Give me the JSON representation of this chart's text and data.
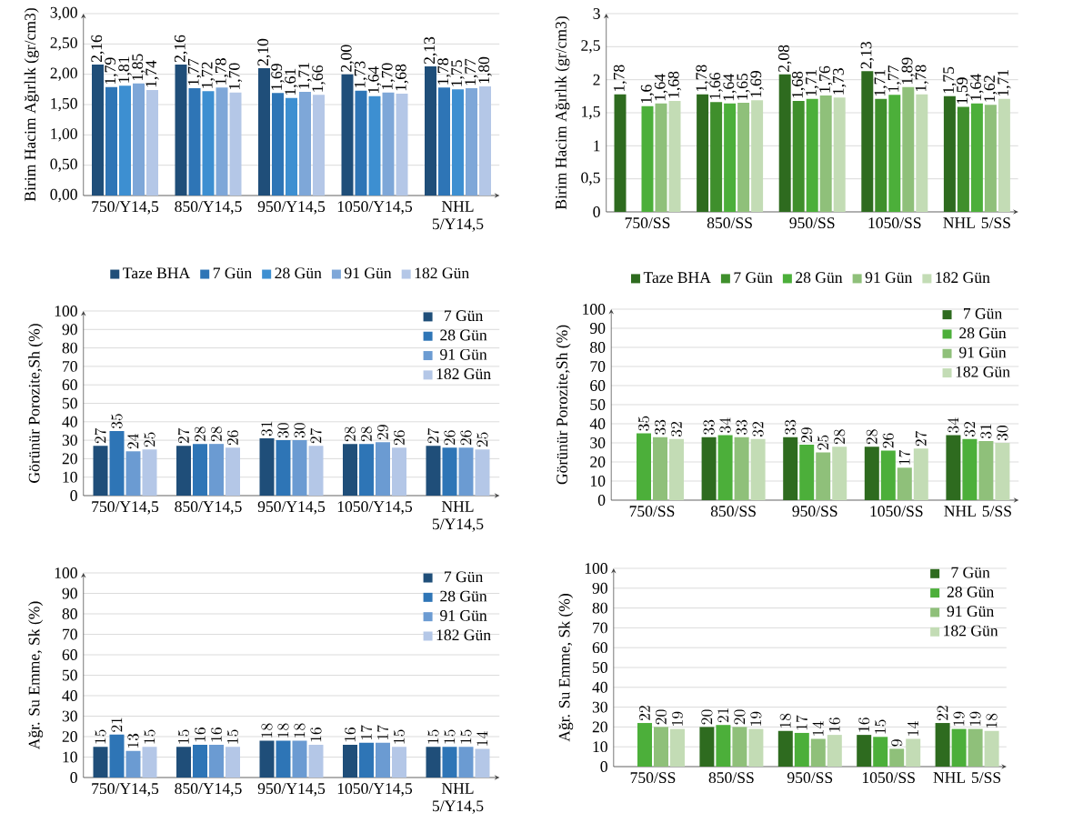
{
  "chart_data": [
    {
      "type": "bar",
      "ylabel": "Birim Hacim Ağırlık (gr/cm3)",
      "categories": [
        "750/Y14,5",
        "850/Y14,5",
        "950/Y14,5",
        "1050/Y14,5",
        "NHL 5/Y14,5"
      ],
      "ylim": [
        0,
        3
      ],
      "yticks": [
        {
          "value": 0,
          "label": "0,00"
        },
        {
          "value": 0.5,
          "label": "0,50"
        },
        {
          "value": 1,
          "label": "1,00"
        },
        {
          "value": 1.5,
          "label": "1,50"
        },
        {
          "value": 2,
          "label": "2,00"
        },
        {
          "value": 2.5,
          "label": "2,50"
        },
        {
          "value": 3,
          "label": "3,00"
        }
      ],
      "grid": "y",
      "legend": "bottom",
      "series": [
        {
          "name": "Taze BHA",
          "color": "#1f4e79",
          "values": [
            2.16,
            2.16,
            2.1,
            2.0,
            2.13
          ],
          "value_labels": [
            "2,16",
            "2,16",
            "2,10",
            "2,00",
            "2,13"
          ]
        },
        {
          "name": "7 Gün",
          "color": "#2e75b6",
          "values": [
            1.79,
            1.77,
            1.69,
            1.73,
            1.78
          ],
          "value_labels": [
            "1,79",
            "1,77",
            "1,69",
            "1,73",
            "1,78"
          ]
        },
        {
          "name": "28 Gün",
          "color": "#3d8fd1",
          "values": [
            1.81,
            1.72,
            1.61,
            1.64,
            1.75
          ],
          "value_labels": [
            "1,81",
            "1,72",
            "1,61",
            "1,64",
            "1,75"
          ]
        },
        {
          "name": "91 Gün",
          "color": "#7ea7d8",
          "values": [
            1.85,
            1.78,
            1.71,
            1.7,
            1.77
          ],
          "value_labels": [
            "1,85",
            "1,78",
            "1,71",
            "1,70",
            "1,77"
          ]
        },
        {
          "name": "182 Gün",
          "color": "#b4c7e7",
          "values": [
            1.74,
            1.7,
            1.66,
            1.68,
            1.8
          ],
          "value_labels": [
            "1,74",
            "1,70",
            "1,66",
            "1,68",
            "1,80"
          ]
        }
      ]
    },
    {
      "type": "bar",
      "ylabel": "Birim Hacim Ağırlık (gr/cm3)",
      "categories": [
        "750/SS",
        "850/SS",
        "950/SS",
        "1050/SS",
        "NHL 5/SS"
      ],
      "ylim": [
        0,
        3
      ],
      "yticks": [
        0,
        {
          "value": 0.5,
          "label": "0,5"
        },
        1,
        {
          "value": 1.5,
          "label": "1,5"
        },
        2,
        {
          "value": 2.5,
          "label": "2,5"
        },
        3
      ],
      "grid": "y",
      "legend": "bottom",
      "series": [
        {
          "name": "Taze BHA",
          "color": "#2e6b1f",
          "values": [
            1.78,
            1.78,
            2.08,
            2.13,
            1.75
          ],
          "value_labels": [
            "1,78",
            "1,78",
            "2,08",
            "2,13",
            "1,75"
          ]
        },
        {
          "name": "7 Gün",
          "color": "#3f8f2c",
          "values": [
            null,
            1.66,
            1.68,
            1.71,
            1.59
          ],
          "value_labels": [
            null,
            "1,66",
            "1,68",
            "1,71",
            "1,59"
          ]
        },
        {
          "name": "28 Gün",
          "color": "#4caf3a",
          "values": [
            1.6,
            1.64,
            1.71,
            1.77,
            1.64
          ],
          "value_labels": [
            "1,6",
            "1,64",
            "1,71",
            "1,77",
            "1,64"
          ]
        },
        {
          "name": "91 Gün",
          "color": "#8fc07a",
          "values": [
            1.64,
            1.65,
            1.76,
            1.89,
            1.62
          ],
          "value_labels": [
            "1,64",
            "1,65",
            "1,76",
            "1,89",
            "1,62"
          ]
        },
        {
          "name": "182 Gün",
          "color": "#c3dcb5",
          "values": [
            1.68,
            1.69,
            1.73,
            1.78,
            1.71
          ],
          "value_labels": [
            "1,68",
            "1,69",
            "1,73",
            "1,78",
            "1,71"
          ]
        }
      ]
    },
    {
      "type": "bar",
      "ylabel": "Görünür Porozite,Sh (%)",
      "categories": [
        "750/Y14,5",
        "850/Y14,5",
        "950/Y14,5",
        "1050/Y14,5",
        "NHL 5/Y14,5"
      ],
      "ylim": [
        0,
        100
      ],
      "yticks": [
        0,
        10,
        20,
        30,
        40,
        50,
        60,
        70,
        80,
        90,
        100
      ],
      "grid": "y",
      "legend": "top right",
      "data_labels": true,
      "series": [
        {
          "name": "7 Gün",
          "color": "#1f4e79",
          "values": [
            27,
            27,
            31,
            28,
            27
          ]
        },
        {
          "name": "28 Gün",
          "color": "#2e75b6",
          "values": [
            35,
            28,
            30,
            28,
            26
          ]
        },
        {
          "name": "91 Gün",
          "color": "#6b9bd2",
          "values": [
            24,
            28,
            30,
            29,
            26
          ]
        },
        {
          "name": "182 Gün",
          "color": "#b4c7e7",
          "values": [
            25,
            26,
            27,
            26,
            25
          ]
        }
      ]
    },
    {
      "type": "bar",
      "ylabel": "Görünür Porozite,Sh (%)",
      "categories": [
        "750/SS",
        "850/SS",
        "950/SS",
        "1050/SS",
        "NHL 5/SS"
      ],
      "ylim": [
        0,
        100
      ],
      "yticks": [
        0,
        10,
        20,
        30,
        40,
        50,
        60,
        70,
        80,
        90,
        100
      ],
      "grid": "y",
      "legend": "top right",
      "data_labels": true,
      "series": [
        {
          "name": "7 Gün",
          "color": "#2e6b1f",
          "values": [
            null,
            33,
            33,
            28,
            34
          ]
        },
        {
          "name": "28 Gün",
          "color": "#4caf3a",
          "values": [
            35,
            34,
            29,
            26,
            32
          ]
        },
        {
          "name": "91 Gün",
          "color": "#8fc07a",
          "values": [
            33,
            33,
            25,
            17,
            31
          ]
        },
        {
          "name": "182 Gün",
          "color": "#c3dcb5",
          "values": [
            32,
            32,
            28,
            27,
            30
          ]
        }
      ]
    },
    {
      "type": "bar",
      "ylabel": "Ağr. Su Emme, Sk (%)",
      "categories": [
        "750/Y14,5",
        "850/Y14,5",
        "950/Y14,5",
        "1050/Y14,5",
        "NHL 5/Y14,5"
      ],
      "ylim": [
        0,
        100
      ],
      "yticks": [
        0,
        10,
        20,
        30,
        40,
        50,
        60,
        70,
        80,
        90,
        100
      ],
      "grid": "y",
      "legend": "top right",
      "data_labels": true,
      "series": [
        {
          "name": "7 Gün",
          "color": "#1f4e79",
          "values": [
            15,
            15,
            18,
            16,
            15
          ]
        },
        {
          "name": "28 Gün",
          "color": "#2e75b6",
          "values": [
            21,
            16,
            18,
            17,
            15
          ]
        },
        {
          "name": "91 Gün",
          "color": "#6b9bd2",
          "values": [
            13,
            16,
            18,
            17,
            15
          ]
        },
        {
          "name": "182 Gün",
          "color": "#b4c7e7",
          "values": [
            15,
            15,
            16,
            15,
            14
          ]
        }
      ]
    },
    {
      "type": "bar",
      "ylabel": "Ağr. Su Emme, Sk (%)",
      "categories": [
        "750/SS",
        "850/SS",
        "950/SS",
        "1050/SS",
        "NHL 5/SS"
      ],
      "ylim": [
        0,
        100
      ],
      "yticks": [
        0,
        10,
        20,
        30,
        40,
        50,
        60,
        70,
        80,
        90,
        100
      ],
      "grid": "y",
      "legend": "top right",
      "data_labels": true,
      "series": [
        {
          "name": "7 Gün",
          "color": "#2e6b1f",
          "values": [
            null,
            20,
            18,
            16,
            22
          ]
        },
        {
          "name": "28 Gün",
          "color": "#4caf3a",
          "values": [
            22,
            21,
            17,
            15,
            19
          ]
        },
        {
          "name": "91 Gün",
          "color": "#8fc07a",
          "values": [
            20,
            20,
            14,
            9,
            19
          ]
        },
        {
          "name": "182 Gün",
          "color": "#c3dcb5",
          "values": [
            19,
            19,
            16,
            14,
            18
          ]
        }
      ]
    }
  ]
}
